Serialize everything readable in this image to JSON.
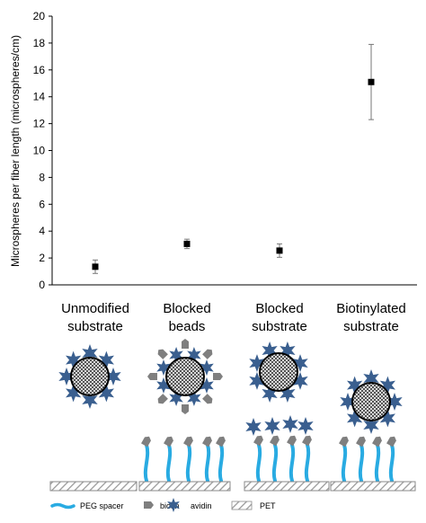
{
  "chart_data": {
    "type": "scatter",
    "ylabel": "Microspheres per fiber length  (microspheres/cm)",
    "ylim": [
      0,
      20
    ],
    "yticks": [
      0,
      2,
      4,
      6,
      8,
      10,
      12,
      14,
      16,
      18,
      20
    ],
    "categories": [
      [
        "Unmodified",
        "substrate"
      ],
      [
        "Blocked",
        "beads"
      ],
      [
        "Blocked",
        "substrate"
      ],
      [
        "Biotinylated",
        "substrate"
      ]
    ],
    "values": [
      1.35,
      3.05,
      2.55,
      15.1
    ],
    "error_low": [
      0.85,
      2.7,
      2.05,
      12.3
    ],
    "error_high": [
      1.85,
      3.4,
      3.05,
      17.9
    ],
    "grid": false
  },
  "legend": {
    "items": [
      {
        "label": "PEG spacer",
        "icon": "peg-spacer-icon",
        "color": "#29abe2"
      },
      {
        "label": "biotin",
        "icon": "biotin-icon",
        "color": "#7f7f7f"
      },
      {
        "label": "avidin",
        "icon": "avidin-icon",
        "color": "#3a5f8f"
      },
      {
        "label": "PET",
        "icon": "pet-icon",
        "color": "#bdbdbd"
      }
    ]
  },
  "colors": {
    "peg": "#29abe2",
    "avidin": "#3a5f8f",
    "biotin": "#7f7f7f",
    "pet": "#bdbdbd"
  }
}
